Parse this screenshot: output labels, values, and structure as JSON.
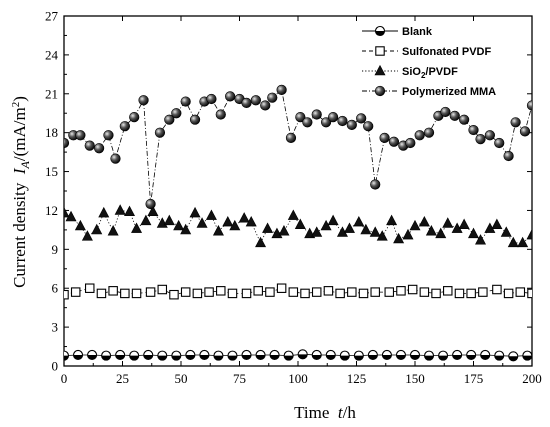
{
  "chart_data": {
    "type": "line",
    "xlabel": "Time  t/h",
    "ylabel": "Current density  I_A/(mA/m^2)",
    "xlim": [
      0,
      200
    ],
    "ylim": [
      0,
      27
    ],
    "xticks": [
      "0",
      "25",
      "50",
      "75",
      "100",
      "125",
      "150",
      "175",
      "200"
    ],
    "yticks": [
      "0",
      "3",
      "6",
      "9",
      "12",
      "15",
      "18",
      "21",
      "24",
      "27"
    ],
    "grid": false,
    "legend_position": "top-right",
    "series": [
      {
        "name": "Blank",
        "marker": "half-filled-circle",
        "line": "solid",
        "x": [
          0,
          6,
          12,
          18,
          24,
          30,
          36,
          42,
          48,
          54,
          60,
          66,
          72,
          78,
          84,
          90,
          96,
          102,
          108,
          114,
          120,
          126,
          132,
          138,
          144,
          150,
          156,
          162,
          168,
          174,
          180,
          186,
          192,
          198
        ],
        "y": [
          0.8,
          0.85,
          0.85,
          0.8,
          0.85,
          0.8,
          0.85,
          0.8,
          0.8,
          0.85,
          0.85,
          0.8,
          0.8,
          0.85,
          0.85,
          0.85,
          0.8,
          0.9,
          0.85,
          0.85,
          0.8,
          0.8,
          0.85,
          0.85,
          0.85,
          0.85,
          0.8,
          0.8,
          0.85,
          0.85,
          0.85,
          0.8,
          0.75,
          0.8
        ]
      },
      {
        "name": "Sulfonated PVDF",
        "marker": "open-square",
        "line": "dashed",
        "x": [
          0,
          5,
          11,
          16,
          21,
          26,
          31,
          37,
          42,
          47,
          52,
          57,
          62,
          67,
          72,
          78,
          83,
          88,
          93,
          98,
          103,
          108,
          113,
          118,
          123,
          128,
          133,
          139,
          144,
          149,
          154,
          159,
          164,
          169,
          174,
          179,
          185,
          190,
          195,
          200
        ],
        "y": [
          5.5,
          5.7,
          6.0,
          5.6,
          5.8,
          5.6,
          5.6,
          5.7,
          5.9,
          5.5,
          5.7,
          5.6,
          5.7,
          5.8,
          5.6,
          5.6,
          5.8,
          5.7,
          6.0,
          5.7,
          5.6,
          5.7,
          5.8,
          5.6,
          5.7,
          5.6,
          5.7,
          5.7,
          5.8,
          5.9,
          5.7,
          5.6,
          5.8,
          5.6,
          5.6,
          5.7,
          5.9,
          5.6,
          5.7,
          5.6
        ]
      },
      {
        "name": "SiO2/PVDF",
        "marker": "filled-triangle",
        "line": "dotted",
        "x": [
          0,
          3,
          7,
          10,
          14,
          17,
          21,
          24,
          28,
          31,
          35,
          38,
          42,
          45,
          49,
          52,
          56,
          59,
          63,
          66,
          70,
          73,
          77,
          80,
          84,
          87,
          91,
          94,
          98,
          101,
          105,
          108,
          112,
          115,
          119,
          122,
          126,
          129,
          133,
          136,
          140,
          143,
          147,
          150,
          154,
          157,
          161,
          164,
          168,
          171,
          175,
          178,
          182,
          185,
          189,
          192,
          196,
          200
        ],
        "y": [
          11.8,
          11.5,
          10.8,
          10.0,
          10.5,
          11.8,
          10.4,
          12.0,
          11.9,
          10.6,
          11.2,
          11.9,
          11.0,
          11.2,
          10.8,
          10.5,
          11.8,
          11.0,
          11.6,
          10.4,
          11.1,
          10.8,
          11.4,
          11.1,
          9.5,
          10.6,
          10.2,
          10.4,
          11.6,
          10.9,
          10.2,
          10.3,
          10.8,
          11.2,
          10.3,
          10.6,
          11.1,
          10.5,
          10.3,
          10.0,
          11.2,
          9.8,
          10.1,
          10.8,
          11.1,
          10.4,
          10.2,
          11.0,
          10.6,
          10.9,
          10.2,
          9.7,
          10.6,
          10.9,
          10.3,
          9.5,
          9.5,
          10.1
        ]
      },
      {
        "name": "Polymerized MMA",
        "marker": "filled-sphere",
        "line": "dash-dot",
        "x": [
          0,
          4,
          7,
          11,
          15,
          19,
          22,
          26,
          30,
          34,
          37,
          41,
          45,
          48,
          52,
          56,
          60,
          63,
          67,
          71,
          75,
          78,
          82,
          86,
          89,
          93,
          97,
          101,
          104,
          108,
          112,
          115,
          119,
          123,
          127,
          130,
          133,
          137,
          141,
          145,
          148,
          152,
          156,
          160,
          163,
          167,
          171,
          175,
          178,
          182,
          186,
          190,
          193,
          197,
          200
        ],
        "y": [
          17.2,
          17.8,
          17.8,
          17.0,
          16.8,
          17.8,
          16.0,
          18.5,
          19.2,
          20.5,
          12.5,
          18.0,
          19.0,
          19.5,
          20.4,
          19.0,
          20.4,
          20.6,
          19.4,
          20.8,
          20.6,
          20.3,
          20.5,
          20.1,
          20.7,
          21.3,
          17.6,
          19.2,
          18.8,
          19.4,
          18.8,
          19.2,
          18.9,
          18.6,
          19.1,
          18.5,
          14.0,
          17.6,
          17.3,
          17.0,
          17.2,
          17.8,
          18.0,
          19.3,
          19.6,
          19.3,
          19.0,
          18.2,
          17.5,
          17.8,
          17.2,
          16.2,
          18.8,
          18.1,
          20.1
        ]
      }
    ]
  }
}
